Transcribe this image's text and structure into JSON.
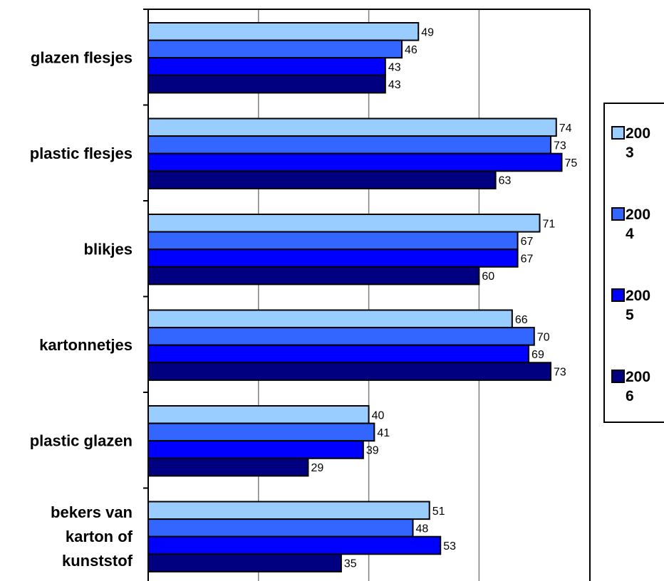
{
  "chart_data": {
    "type": "bar",
    "orientation": "horizontal",
    "categories": [
      [
        "glazen flesjes"
      ],
      [
        "plastic flesjes"
      ],
      [
        "blikjes"
      ],
      [
        "kartonnetjes"
      ],
      [
        "plastic glazen"
      ],
      [
        "bekers van",
        "karton of",
        "kunststof"
      ]
    ],
    "series": [
      {
        "name": [
          "200",
          "3"
        ],
        "color": "#99CCFF",
        "values": [
          49,
          74,
          71,
          66,
          40,
          51
        ]
      },
      {
        "name": [
          "200",
          "4"
        ],
        "color": "#3366FF",
        "values": [
          46,
          73,
          67,
          70,
          41,
          48
        ]
      },
      {
        "name": [
          "200",
          "5"
        ],
        "color": "#0000FF",
        "values": [
          43,
          75,
          67,
          69,
          39,
          53
        ]
      },
      {
        "name": [
          "200",
          "6"
        ],
        "color": "#000080",
        "values": [
          43,
          63,
          60,
          73,
          29,
          35
        ]
      }
    ],
    "xlim": [
      0,
      80
    ],
    "grid": true,
    "legend_position": "right",
    "data_labels": true
  }
}
